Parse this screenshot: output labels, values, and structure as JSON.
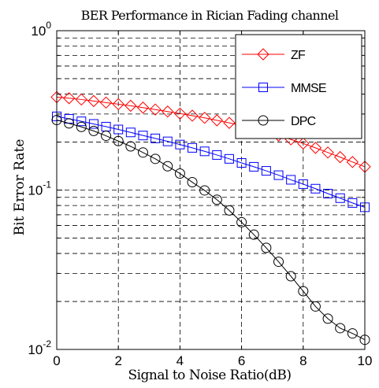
{
  "chart_data": {
    "type": "line",
    "title": "BER Performance in Rician Fading channel",
    "xlabel": "Signal to Noise Ratio(dB)",
    "ylabel": "Bit Error Rate",
    "xlim": [
      0,
      10
    ],
    "ylim": [
      0.01,
      1
    ],
    "yscale": "log",
    "grid": true,
    "legend_position": "top-right",
    "x_ticks": [
      "0",
      "2",
      "4",
      "6",
      "8",
      "10"
    ],
    "y_ticks": [
      {
        "value": 1,
        "mantissa": "10",
        "exponent": "0"
      },
      {
        "value": 0.1,
        "mantissa": "10",
        "exponent": "-1"
      },
      {
        "value": 0.01,
        "mantissa": "10",
        "exponent": "-2"
      }
    ],
    "x": [
      0,
      0.4,
      0.8,
      1.2,
      1.6,
      2.0,
      2.4,
      2.8,
      3.2,
      3.6,
      4.0,
      4.4,
      4.8,
      5.2,
      5.6,
      6.0,
      6.4,
      6.8,
      7.2,
      7.6,
      8.0,
      8.4,
      8.8,
      9.2,
      9.6,
      10.0
    ],
    "series": [
      {
        "name": "ZF",
        "color": "#ff0000",
        "marker": "diamond",
        "values": [
          0.383,
          0.377,
          0.37,
          0.362,
          0.354,
          0.346,
          0.338,
          0.329,
          0.32,
          0.311,
          0.302,
          0.293,
          0.284,
          0.274,
          0.264,
          0.254,
          0.243,
          0.232,
          0.22,
          0.208,
          0.196,
          0.184,
          0.172,
          0.161,
          0.15,
          0.14
        ]
      },
      {
        "name": "MMSE",
        "color": "#0000ff",
        "marker": "square",
        "values": [
          0.29,
          0.28,
          0.27,
          0.26,
          0.25,
          0.24,
          0.23,
          0.22,
          0.211,
          0.202,
          0.193,
          0.184,
          0.175,
          0.166,
          0.157,
          0.148,
          0.14,
          0.132,
          0.124,
          0.116,
          0.109,
          0.102,
          0.095,
          0.089,
          0.083,
          0.078
        ]
      },
      {
        "name": "DPC",
        "color": "#000000",
        "marker": "circle",
        "values": [
          0.275,
          0.262,
          0.249,
          0.235,
          0.219,
          0.203,
          0.188,
          0.172,
          0.157,
          0.141,
          0.127,
          0.112,
          0.0995,
          0.087,
          0.0745,
          0.0628,
          0.0525,
          0.0434,
          0.0355,
          0.0288,
          0.0232,
          0.0186,
          0.0156,
          0.0136,
          0.0126,
          0.0115
        ]
      }
    ]
  }
}
